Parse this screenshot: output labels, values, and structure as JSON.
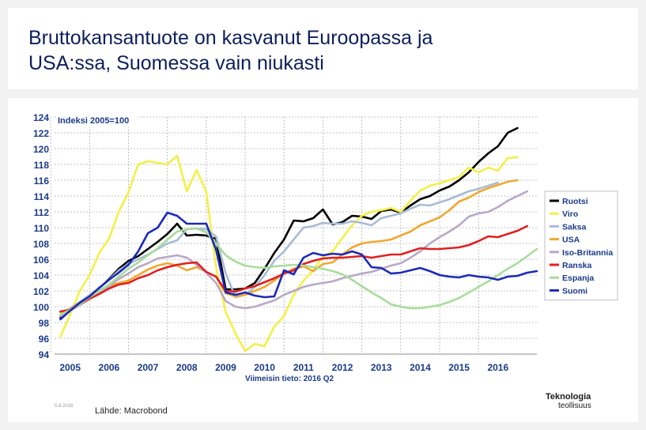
{
  "page": {
    "title_line1": "Bruttokansantuote on kasvanut Euroopassa ja",
    "title_line2": "USA:ssa, Suomessa vain niukasti",
    "source": "Lähde: Macrobond",
    "page_number": "5.8.2016",
    "logo_line1": "Teknologia",
    "logo_line2": "teollisuus"
  },
  "chart_data": {
    "type": "line",
    "index_label": "Indeksi 2005=100",
    "latest_note": "Viimeisin tieto: 2016 Q2",
    "ylim": [
      94,
      124
    ],
    "yticks": [
      94,
      96,
      98,
      100,
      102,
      104,
      106,
      108,
      110,
      112,
      114,
      116,
      118,
      120,
      122,
      124
    ],
    "xlim": [
      2004.6,
      2017.0
    ],
    "xticks": [
      2005,
      2006,
      2007,
      2008,
      2009,
      2010,
      2011,
      2012,
      2013,
      2014,
      2015,
      2016
    ],
    "x_start": 2004.75,
    "x_step": 0.25,
    "grid": true,
    "legend_position": "right",
    "colors": {
      "background": "#ffffff",
      "grid": "#b0b0b0",
      "axis_text": "#1a3a8a",
      "Ruotsi": "#000000",
      "Viro": "#f4f047",
      "Saksa": "#a7bcd6",
      "USA": "#f0a830",
      "Iso-Britannia": "#b8a8c8",
      "Ranska": "#e02020",
      "Espanja": "#a8dd9a",
      "Suomi": "#1b2ab8"
    },
    "series": [
      {
        "name": "Ruotsi",
        "values": [
          98.6,
          99.5,
          100.3,
          101.2,
          102.3,
          103.5,
          104.8,
          105.8,
          106.4,
          107.3,
          108.2,
          109.2,
          110.5,
          109.0,
          109.1,
          109.0,
          108.6,
          102.2,
          102.2,
          102.3,
          103.0,
          104.8,
          106.8,
          108.5,
          110.9,
          110.8,
          111.2,
          112.3,
          110.4,
          110.7,
          111.5,
          111.4,
          111.1,
          112.1,
          112.3,
          111.9,
          112.8,
          113.6,
          114.0,
          114.7,
          115.2,
          116.0,
          117.0,
          118.3,
          119.4,
          120.3,
          122.0,
          122.6
        ]
      },
      {
        "name": "Viro",
        "values": [
          96.2,
          99.0,
          102.0,
          104.0,
          106.8,
          108.6,
          112.0,
          114.5,
          118.0,
          118.4,
          118.2,
          118.0,
          119.1,
          114.6,
          117.3,
          114.5,
          105.0,
          99.3,
          96.6,
          94.4,
          95.3,
          95.0,
          97.5,
          98.8,
          101.5,
          103.3,
          104.6,
          106.3,
          107.0,
          108.7,
          110.3,
          111.5,
          112.0,
          112.2,
          112.5,
          112.0,
          113.4,
          114.7,
          115.3,
          115.6,
          116.0,
          116.4,
          117.6,
          117.0,
          117.6,
          117.2,
          118.8,
          118.9
        ]
      },
      {
        "name": "Saksa",
        "values": [
          98.9,
          99.8,
          100.6,
          101.5,
          102.3,
          103.4,
          104.6,
          105.4,
          106.0,
          106.6,
          107.3,
          108.0,
          108.4,
          109.8,
          109.9,
          109.8,
          108.9,
          104.2,
          101.2,
          101.5,
          102.5,
          104.0,
          105.8,
          107.0,
          108.5,
          110.0,
          110.2,
          110.6,
          110.5,
          110.5,
          110.8,
          110.6,
          110.3,
          111.2,
          111.5,
          111.8,
          112.4,
          112.9,
          112.8,
          113.2,
          113.6,
          114.1,
          114.6,
          114.9,
          115.3,
          115.7
        ]
      },
      {
        "name": "USA",
        "values": [
          99.3,
          99.7,
          100.5,
          101.3,
          102.0,
          102.6,
          103.0,
          103.3,
          104.0,
          104.7,
          105.2,
          105.5,
          105.2,
          104.6,
          105.0,
          104.4,
          103.8,
          101.7,
          101.3,
          101.5,
          102.0,
          102.5,
          103.3,
          104.2,
          104.8,
          105.1,
          104.5,
          105.4,
          105.6,
          106.6,
          107.5,
          108.0,
          108.2,
          108.3,
          108.5,
          109.0,
          109.5,
          110.3,
          110.8,
          111.3,
          112.2,
          113.3,
          113.8,
          114.5,
          115.0,
          115.4,
          115.8,
          116.0
        ]
      },
      {
        "name": "Iso-Britannia",
        "values": [
          98.8,
          99.5,
          100.2,
          101.0,
          101.8,
          102.6,
          103.5,
          104.2,
          105.0,
          105.5,
          106.1,
          106.3,
          106.5,
          106.2,
          105.3,
          104.3,
          103.0,
          100.7,
          100.0,
          99.8,
          100.0,
          100.4,
          100.8,
          101.5,
          102.0,
          102.5,
          102.8,
          103.0,
          103.2,
          103.6,
          103.9,
          104.2,
          104.4,
          104.8,
          105.2,
          105.5,
          106.2,
          107.0,
          108.0,
          108.8,
          109.5,
          110.3,
          111.4,
          111.8,
          112.0,
          112.6,
          113.4,
          114.0,
          114.6
        ]
      },
      {
        "name": "Ranska",
        "values": [
          99.4,
          99.6,
          100.3,
          101.0,
          101.6,
          102.3,
          102.8,
          103.0,
          103.6,
          104.0,
          104.6,
          105.0,
          105.3,
          105.5,
          105.6,
          104.4,
          103.8,
          102.0,
          101.9,
          102.3,
          102.6,
          103.1,
          103.6,
          104.2,
          104.6,
          105.4,
          105.8,
          106.1,
          106.2,
          106.2,
          106.3,
          106.4,
          106.2,
          106.4,
          106.6,
          106.6,
          107.0,
          107.4,
          107.3,
          107.3,
          107.4,
          107.5,
          107.8,
          108.3,
          108.9,
          108.8,
          109.2,
          109.6,
          110.2
        ]
      },
      {
        "name": "Espanja",
        "values": [
          99.0,
          99.6,
          100.3,
          101.2,
          102.0,
          102.8,
          103.8,
          104.8,
          105.6,
          106.5,
          107.4,
          108.5,
          109.5,
          109.8,
          109.9,
          109.4,
          108.0,
          106.5,
          105.7,
          105.2,
          105.0,
          104.9,
          105.1,
          105.2,
          105.3,
          105.2,
          105.0,
          104.8,
          104.5,
          104.1,
          103.4,
          102.6,
          101.8,
          101.1,
          100.3,
          100.0,
          99.8,
          99.8,
          100.0,
          100.2,
          100.6,
          101.1,
          101.8,
          102.5,
          103.2,
          104.0,
          104.8,
          105.5,
          106.4,
          107.3
        ]
      },
      {
        "name": "Suomi",
        "values": [
          98.4,
          99.5,
          100.5,
          101.3,
          102.4,
          103.4,
          104.3,
          105.3,
          107.0,
          109.3,
          110.0,
          111.9,
          111.5,
          110.5,
          110.5,
          110.5,
          107.2,
          101.8,
          101.5,
          101.8,
          101.4,
          101.2,
          101.3,
          104.6,
          104.1,
          106.2,
          106.8,
          106.5,
          106.7,
          106.6,
          107.0,
          106.6,
          105.0,
          104.9,
          104.2,
          104.3,
          104.6,
          104.9,
          104.5,
          104.0,
          103.8,
          103.7,
          104.0,
          103.8,
          103.7,
          103.4,
          103.8,
          103.9,
          104.3,
          104.5
        ]
      }
    ]
  }
}
